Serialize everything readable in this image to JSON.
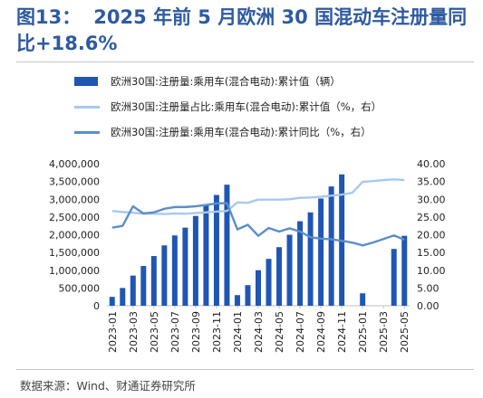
{
  "figure": {
    "label": "图13：",
    "title": "2025 年前 5 月欧洲 30 国混动车注册量同比+18.6%",
    "source": "数据来源：Wind、财通证券研究所"
  },
  "colors": {
    "bar": "#1f56b4",
    "share_line": "#a9c8ee",
    "yoy_line": "#5b8ec9",
    "title": "#2e5aa0"
  },
  "chart_data": {
    "type": "bar",
    "categories": [
      "2023-01",
      "2023-02",
      "2023-03",
      "2023-04",
      "2023-05",
      "2023-06",
      "2023-07",
      "2023-08",
      "2023-09",
      "2023-10",
      "2023-11",
      "2023-12",
      "2024-01",
      "2024-02",
      "2024-03",
      "2024-04",
      "2024-05",
      "2024-06",
      "2024-07",
      "2024-08",
      "2024-09",
      "2024-10",
      "2024-11",
      "2024-12",
      "2025-01",
      "2025-02",
      "2025-03",
      "2025-04",
      "2025-05"
    ],
    "x_tick_labels": [
      "2023-01",
      "2023-03",
      "2023-05",
      "2023-07",
      "2023-09",
      "2023-11",
      "2024-01",
      "2024-03",
      "2024-05",
      "2024-07",
      "2024-09",
      "2024-11",
      "2025-01",
      "2025-03",
      "2025-05"
    ],
    "left_axis": {
      "ylim": [
        0,
        4000000
      ],
      "ticks": [
        0,
        500000,
        1000000,
        1500000,
        2000000,
        2500000,
        3000000,
        3500000,
        4000000
      ],
      "tick_labels": [
        "0",
        "500,000",
        "1,000,000",
        "1,500,000",
        "2,000,000",
        "2,500,000",
        "3,000,000",
        "3,500,000",
        "4,000,000"
      ]
    },
    "right_axis": {
      "ylim": [
        0,
        40
      ],
      "ticks": [
        0,
        5,
        10,
        15,
        20,
        25,
        30,
        35,
        40
      ],
      "tick_labels": [
        "0.00",
        "5.00",
        "10.00",
        "15.00",
        "20.00",
        "25.00",
        "30.00",
        "35.00",
        "40.00"
      ]
    },
    "legend_placement": "top",
    "series": [
      {
        "name": "欧洲30国:注册量:乘用车(混合电动):累计值（辆）",
        "kind": "bar",
        "axis": "left",
        "values": [
          250000,
          500000,
          850000,
          1120000,
          1400000,
          1700000,
          1980000,
          2200000,
          2530000,
          2830000,
          3120000,
          3410000,
          300000,
          580000,
          1000000,
          1320000,
          1650000,
          2000000,
          2380000,
          2630000,
          3020000,
          3360000,
          3700000,
          null,
          350000,
          null,
          null,
          1600000,
          1970000
        ]
      },
      {
        "name": "欧洲30国:注册量占比:乘用车(混合电动):累计值（%，右）",
        "kind": "line",
        "axis": "right",
        "values": [
          26.7,
          26.4,
          26.2,
          25.9,
          25.9,
          25.8,
          26.0,
          25.9,
          26.1,
          26.3,
          26.5,
          26.7,
          29.1,
          29.0,
          29.9,
          29.9,
          29.9,
          30.0,
          30.4,
          30.5,
          30.7,
          31.0,
          31.3,
          31.8,
          34.9,
          35.1,
          35.4,
          35.6,
          35.4
        ]
      },
      {
        "name": "欧洲30国:注册量:乘用车(混合电动):累计同比（%，右）",
        "kind": "line",
        "axis": "right",
        "values": [
          22.0,
          22.5,
          28.0,
          26.0,
          26.3,
          27.3,
          27.8,
          27.8,
          28.0,
          28.4,
          28.8,
          28.9,
          21.5,
          22.8,
          19.7,
          21.9,
          20.9,
          21.8,
          20.9,
          19.3,
          18.9,
          18.7,
          18.3,
          17.8,
          17.0,
          17.8,
          18.8,
          19.8,
          18.6
        ]
      }
    ]
  }
}
